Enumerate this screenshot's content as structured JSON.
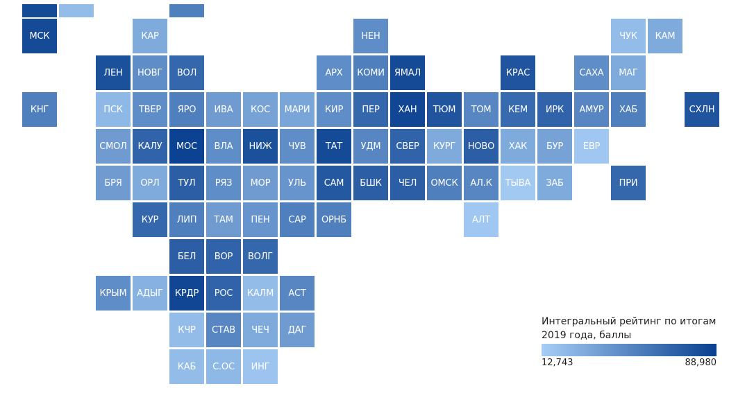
{
  "colors": {
    "min": "#a6cdf5",
    "max": "#083f8f"
  },
  "legend": {
    "title": "Интегральный рейтинг по итогам 2019 года, баллы",
    "min_label": "12,743",
    "max_label": "88,980"
  },
  "chart_data": {
    "type": "heatmap",
    "value_range": [
      12.743,
      88.98
    ],
    "regions": [
      {
        "label": "",
        "col": 0,
        "row": -1,
        "value": 0.92
      },
      {
        "label": "",
        "col": 1,
        "row": -1,
        "value": 0.12
      },
      {
        "label": "",
        "col": 4,
        "row": -1,
        "value": 0.55
      },
      {
        "label": "МСК",
        "col": 0,
        "row": 0,
        "value": 0.92
      },
      {
        "label": "КАР",
        "col": 3,
        "row": 0,
        "value": 0.25
      },
      {
        "label": "НЕН",
        "col": 9,
        "row": 0,
        "value": 0.45
      },
      {
        "label": "ЧУК",
        "col": 16,
        "row": 0,
        "value": 0.12
      },
      {
        "label": "КАМ",
        "col": 17,
        "row": 0,
        "value": 0.25
      },
      {
        "label": "ЛЕН",
        "col": 2,
        "row": 1,
        "value": 0.88
      },
      {
        "label": "НОВГ",
        "col": 3,
        "row": 1,
        "value": 0.45
      },
      {
        "label": "ВОЛ",
        "col": 4,
        "row": 1,
        "value": 0.72
      },
      {
        "label": "АРХ",
        "col": 8,
        "row": 1,
        "value": 0.45
      },
      {
        "label": "КОМИ",
        "col": 9,
        "row": 1,
        "value": 0.55
      },
      {
        "label": "ЯМАЛ",
        "col": 10,
        "row": 1,
        "value": 0.92
      },
      {
        "label": "КРАС",
        "col": 13,
        "row": 1,
        "value": 0.85
      },
      {
        "label": "САХА",
        "col": 15,
        "row": 1,
        "value": 0.45
      },
      {
        "label": "МАГ",
        "col": 16,
        "row": 1,
        "value": 0.25
      },
      {
        "label": "КНГ",
        "col": 0,
        "row": 2,
        "value": 0.55
      },
      {
        "label": "ПСК",
        "col": 2,
        "row": 2,
        "value": 0.15
      },
      {
        "label": "ТВЕР",
        "col": 3,
        "row": 2,
        "value": 0.45
      },
      {
        "label": "ЯРО",
        "col": 4,
        "row": 2,
        "value": 0.55
      },
      {
        "label": "ИВА",
        "col": 5,
        "row": 2,
        "value": 0.35
      },
      {
        "label": "КОС",
        "col": 6,
        "row": 2,
        "value": 0.3
      },
      {
        "label": "МАРИ",
        "col": 7,
        "row": 2,
        "value": 0.28
      },
      {
        "label": "КИР",
        "col": 8,
        "row": 2,
        "value": 0.45
      },
      {
        "label": "ПЕР",
        "col": 9,
        "row": 2,
        "value": 0.72
      },
      {
        "label": "ХАН",
        "col": 10,
        "row": 2,
        "value": 0.95
      },
      {
        "label": "ТЮМ",
        "col": 11,
        "row": 2,
        "value": 0.85
      },
      {
        "label": "ТОМ",
        "col": 12,
        "row": 2,
        "value": 0.5
      },
      {
        "label": "КЕМ",
        "col": 13,
        "row": 2,
        "value": 0.7
      },
      {
        "label": "ИРК",
        "col": 14,
        "row": 2,
        "value": 0.75
      },
      {
        "label": "АМУР",
        "col": 15,
        "row": 2,
        "value": 0.5
      },
      {
        "label": "ХАБ",
        "col": 16,
        "row": 2,
        "value": 0.55
      },
      {
        "label": "СХЛН",
        "col": 18,
        "row": 2,
        "value": 0.85
      },
      {
        "label": "СМОЛ",
        "col": 2,
        "row": 3,
        "value": 0.35
      },
      {
        "label": "КАЛУ",
        "col": 3,
        "row": 3,
        "value": 0.75
      },
      {
        "label": "МОС",
        "col": 4,
        "row": 3,
        "value": 0.98
      },
      {
        "label": "ВЛА",
        "col": 5,
        "row": 3,
        "value": 0.45
      },
      {
        "label": "НИЖ",
        "col": 6,
        "row": 3,
        "value": 0.88
      },
      {
        "label": "ЧУВ",
        "col": 7,
        "row": 3,
        "value": 0.45
      },
      {
        "label": "ТАТ",
        "col": 8,
        "row": 3,
        "value": 0.92
      },
      {
        "label": "УДМ",
        "col": 9,
        "row": 3,
        "value": 0.5
      },
      {
        "label": "СВЕР",
        "col": 10,
        "row": 3,
        "value": 0.75
      },
      {
        "label": "КУРГ",
        "col": 11,
        "row": 3,
        "value": 0.25
      },
      {
        "label": "НОВО",
        "col": 12,
        "row": 3,
        "value": 0.78
      },
      {
        "label": "ХАК",
        "col": 13,
        "row": 3,
        "value": 0.25
      },
      {
        "label": "БУР",
        "col": 14,
        "row": 3,
        "value": 0.3
      },
      {
        "label": "ЕВР",
        "col": 15,
        "row": 3,
        "value": 0.04
      },
      {
        "label": "БРЯ",
        "col": 2,
        "row": 4,
        "value": 0.35
      },
      {
        "label": "ОРЛ",
        "col": 3,
        "row": 4,
        "value": 0.25
      },
      {
        "label": "ТУЛ",
        "col": 4,
        "row": 4,
        "value": 0.78
      },
      {
        "label": "РЯЗ",
        "col": 5,
        "row": 4,
        "value": 0.45
      },
      {
        "label": "МОР",
        "col": 6,
        "row": 4,
        "value": 0.35
      },
      {
        "label": "УЛЬ",
        "col": 7,
        "row": 4,
        "value": 0.4
      },
      {
        "label": "САМ",
        "col": 8,
        "row": 4,
        "value": 0.82
      },
      {
        "label": "БШК",
        "col": 9,
        "row": 4,
        "value": 0.78
      },
      {
        "label": "ЧЕЛ",
        "col": 10,
        "row": 4,
        "value": 0.78
      },
      {
        "label": "ОМСК",
        "col": 11,
        "row": 4,
        "value": 0.55
      },
      {
        "label": "АЛ.К",
        "col": 12,
        "row": 4,
        "value": 0.5
      },
      {
        "label": "ТЫВА",
        "col": 13,
        "row": 4,
        "value": 0.03
      },
      {
        "label": "ЗАБ",
        "col": 14,
        "row": 4,
        "value": 0.25
      },
      {
        "label": "ПРИ",
        "col": 16,
        "row": 4,
        "value": 0.72
      },
      {
        "label": "КУР",
        "col": 3,
        "row": 5,
        "value": 0.72
      },
      {
        "label": "ЛИП",
        "col": 4,
        "row": 5,
        "value": 0.55
      },
      {
        "label": "ТАМ",
        "col": 5,
        "row": 5,
        "value": 0.35
      },
      {
        "label": "ПЕН",
        "col": 6,
        "row": 5,
        "value": 0.4
      },
      {
        "label": "САР",
        "col": 7,
        "row": 5,
        "value": 0.55
      },
      {
        "label": "ОРНБ",
        "col": 8,
        "row": 5,
        "value": 0.55
      },
      {
        "label": "АЛТ",
        "col": 12,
        "row": 5,
        "value": 0.04
      },
      {
        "label": "БЕЛ",
        "col": 4,
        "row": 6,
        "value": 0.78
      },
      {
        "label": "ВОР",
        "col": 5,
        "row": 6,
        "value": 0.75
      },
      {
        "label": "ВОЛГ",
        "col": 6,
        "row": 6,
        "value": 0.72
      },
      {
        "label": "КРЫМ",
        "col": 2,
        "row": 7,
        "value": 0.45
      },
      {
        "label": "АДЫГ",
        "col": 3,
        "row": 7,
        "value": 0.2
      },
      {
        "label": "КРДР",
        "col": 4,
        "row": 7,
        "value": 0.95
      },
      {
        "label": "РОС",
        "col": 5,
        "row": 7,
        "value": 0.75
      },
      {
        "label": "КАЛМ",
        "col": 6,
        "row": 7,
        "value": 0.12
      },
      {
        "label": "АСТ",
        "col": 7,
        "row": 7,
        "value": 0.5
      },
      {
        "label": "КЧР",
        "col": 4,
        "row": 8,
        "value": 0.12
      },
      {
        "label": "СТАВ",
        "col": 5,
        "row": 8,
        "value": 0.5
      },
      {
        "label": "ЧЕЧ",
        "col": 6,
        "row": 8,
        "value": 0.25
      },
      {
        "label": "ДАГ",
        "col": 7,
        "row": 8,
        "value": 0.35
      },
      {
        "label": "КАБ",
        "col": 4,
        "row": 9,
        "value": 0.12
      },
      {
        "label": "С.ОС",
        "col": 5,
        "row": 9,
        "value": 0.15
      },
      {
        "label": "ИНГ",
        "col": 6,
        "row": 9,
        "value": 0.06
      }
    ]
  }
}
